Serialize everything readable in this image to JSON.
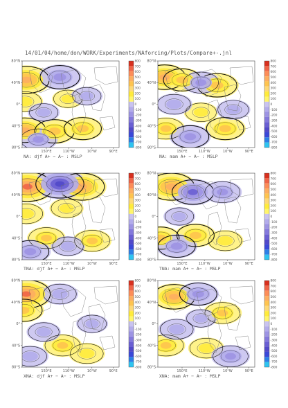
{
  "header": {
    "title": "14/01/04/home/don/WORK/Experiments/NAforcing/Plots/Compare+-.jnl"
  },
  "colorbar": {
    "levels": [
      "800",
      "700",
      "600",
      "500",
      "400",
      "300",
      "200",
      "100",
      "0",
      "-100",
      "-200",
      "-300",
      "-400",
      "-500",
      "-600",
      "-700",
      "-800"
    ],
    "colors": [
      "#d7301f",
      "#ef6548",
      "#fc8d59",
      "#fdae61",
      "#fec44f",
      "#fed976",
      "#ffeb3b",
      "#fff56b",
      "#c9c3f0",
      "#b3aceb",
      "#9d94e3",
      "#8479dc",
      "#6a5fd3",
      "#5149c9",
      "#3a48d8",
      "#2d7fe6",
      "#2ec4f0"
    ]
  },
  "chart_data": [
    {
      "type": "heatmap",
      "caption": "NA: djf A+ − A− : MSLP",
      "season": "djf",
      "lat_ticks": [
        "80°N",
        "40°N",
        "0°",
        "40°S",
        "80°S"
      ],
      "lon_ticks": [
        "150°E",
        "110°W",
        "10°W",
        "90°E"
      ],
      "features": [
        {
          "kind": "pos",
          "lat": 45,
          "lon": -165,
          "magnitude": 550
        },
        {
          "kind": "pos",
          "lat": 5,
          "lon": -170,
          "magnitude": 250
        },
        {
          "kind": "pos",
          "lat": -48,
          "lon": -170,
          "magnitude": 450
        },
        {
          "kind": "pos",
          "lat": -50,
          "lon": -60,
          "magnitude": 400
        },
        {
          "kind": "pos",
          "lat": -45,
          "lon": 45,
          "magnitude": 350
        },
        {
          "kind": "pos",
          "lat": 10,
          "lon": -10,
          "magnitude": 150
        },
        {
          "kind": "neg",
          "lat": 50,
          "lon": -40,
          "magnitude": -400
        },
        {
          "kind": "neg",
          "lat": -15,
          "lon": -100,
          "magnitude": -150
        },
        {
          "kind": "neg",
          "lat": -65,
          "lon": -120,
          "magnitude": -300
        },
        {
          "kind": "neg",
          "lat": 15,
          "lon": 60,
          "magnitude": -150
        }
      ]
    },
    {
      "type": "heatmap",
      "caption": "NA: mam A+ − A− : MSLP",
      "season": "mam",
      "lat_ticks": [
        "80°N",
        "40°N",
        "0°",
        "40°S",
        "80°S"
      ],
      "lon_ticks": [
        "150°E",
        "110°W",
        "10°W",
        "90°E"
      ],
      "features": [
        {
          "kind": "pos",
          "lat": 50,
          "lon": -155,
          "magnitude": 450
        },
        {
          "kind": "pos",
          "lat": 45,
          "lon": -90,
          "magnitude": 350
        },
        {
          "kind": "pos",
          "lat": 35,
          "lon": 40,
          "magnitude": 400
        },
        {
          "kind": "pos",
          "lat": -45,
          "lon": -150,
          "magnitude": 300
        },
        {
          "kind": "pos",
          "lat": -45,
          "lon": 70,
          "magnitude": 350
        },
        {
          "kind": "pos",
          "lat": -15,
          "lon": -20,
          "magnitude": 200
        },
        {
          "kind": "neg",
          "lat": 40,
          "lon": -20,
          "magnitude": -300
        },
        {
          "kind": "neg",
          "lat": 0,
          "lon": -120,
          "magnitude": -250
        },
        {
          "kind": "neg",
          "lat": -60,
          "lon": -60,
          "magnitude": -350
        },
        {
          "kind": "neg",
          "lat": -10,
          "lon": 100,
          "magnitude": -200
        }
      ]
    },
    {
      "type": "heatmap",
      "caption": "TNA: djf A+ − A− : MSLP",
      "season": "djf",
      "lat_ticks": [
        "80°N",
        "40°N",
        "0°",
        "40°S",
        "80°S"
      ],
      "lon_ticks": [
        "150°E",
        "110°W",
        "10°W",
        "90°E"
      ],
      "features": [
        {
          "kind": "pos",
          "lat": 55,
          "lon": -160,
          "magnitude": 650
        },
        {
          "kind": "pos",
          "lat": 5,
          "lon": -165,
          "magnitude": 250
        },
        {
          "kind": "pos",
          "lat": -40,
          "lon": -90,
          "magnitude": 300
        },
        {
          "kind": "pos",
          "lat": 15,
          "lon": -15,
          "magnitude": 200
        },
        {
          "kind": "pos",
          "lat": -45,
          "lon": 80,
          "magnitude": 300
        },
        {
          "kind": "pos",
          "lat": 55,
          "lon": 40,
          "magnitude": 550
        },
        {
          "kind": "neg",
          "lat": 60,
          "lon": -40,
          "magnitude": -600
        },
        {
          "kind": "neg",
          "lat": -55,
          "lon": -10,
          "magnitude": -200
        },
        {
          "kind": "neg",
          "lat": -65,
          "lon": -150,
          "magnitude": -350
        }
      ]
    },
    {
      "type": "heatmap",
      "caption": "TNA: mam A+ − A− : MSLP",
      "season": "mam",
      "lat_ticks": [
        "80°N",
        "40°N",
        "0°",
        "40°S",
        "80°S"
      ],
      "lon_ticks": [
        "150°E",
        "110°W",
        "10°W",
        "90°E"
      ],
      "features": [
        {
          "kind": "pos",
          "lat": 55,
          "lon": -130,
          "magnitude": 550
        },
        {
          "kind": "pos",
          "lat": -40,
          "lon": -170,
          "magnitude": 350
        },
        {
          "kind": "pos",
          "lat": -35,
          "lon": -40,
          "magnitude": 350
        },
        {
          "kind": "pos",
          "lat": -45,
          "lon": 70,
          "magnitude": 250
        },
        {
          "kind": "neg",
          "lat": 45,
          "lon": -50,
          "magnitude": -450
        },
        {
          "kind": "neg",
          "lat": 45,
          "lon": 60,
          "magnitude": -300
        },
        {
          "kind": "neg",
          "lat": -55,
          "lon": -110,
          "magnitude": -350
        },
        {
          "kind": "neg",
          "lat": 0,
          "lon": -100,
          "magnitude": -150
        }
      ]
    },
    {
      "type": "heatmap",
      "caption": "XNA: djf A+ − A− : MSLP",
      "season": "djf",
      "lat_ticks": [
        "80°N",
        "40°N",
        "0°",
        "40°S",
        "80°S"
      ],
      "lon_ticks": [
        "150°E",
        "110°W",
        "10°W",
        "90°E"
      ],
      "features": [
        {
          "kind": "pos",
          "lat": 55,
          "lon": -165,
          "magnitude": 600
        },
        {
          "kind": "pos",
          "lat": 25,
          "lon": -175,
          "magnitude": 350
        },
        {
          "kind": "pos",
          "lat": -40,
          "lon": -30,
          "magnitude": 300
        },
        {
          "kind": "pos",
          "lat": -55,
          "lon": 60,
          "magnitude": 250
        },
        {
          "kind": "neg",
          "lat": 55,
          "lon": -40,
          "magnitude": -250
        },
        {
          "kind": "neg",
          "lat": -15,
          "lon": -100,
          "magnitude": -200
        },
        {
          "kind": "neg",
          "lat": -60,
          "lon": -150,
          "magnitude": -250
        },
        {
          "kind": "neg",
          "lat": 0,
          "lon": 80,
          "magnitude": -150
        }
      ]
    },
    {
      "type": "heatmap",
      "caption": "XNA: mam A+ − A− : MSLP",
      "season": "mam",
      "lat_ticks": [
        "80°N",
        "40°N",
        "0°",
        "40°S",
        "80°S"
      ],
      "lon_ticks": [
        "150°E",
        "110°W",
        "10°W",
        "90°E"
      ],
      "features": [
        {
          "kind": "pos",
          "lat": 50,
          "lon": -120,
          "magnitude": 450
        },
        {
          "kind": "pos",
          "lat": 20,
          "lon": 60,
          "magnitude": 300
        },
        {
          "kind": "pos",
          "lat": -40,
          "lon": -150,
          "magnitude": 300
        },
        {
          "kind": "pos",
          "lat": -45,
          "lon": 0,
          "magnitude": 250
        },
        {
          "kind": "neg",
          "lat": 55,
          "lon": -30,
          "magnitude": -350
        },
        {
          "kind": "neg",
          "lat": -10,
          "lon": -110,
          "magnitude": -250
        },
        {
          "kind": "neg",
          "lat": -60,
          "lon": 90,
          "magnitude": -300
        },
        {
          "kind": "neg",
          "lat": 10,
          "lon": -20,
          "magnitude": -150
        }
      ]
    }
  ]
}
